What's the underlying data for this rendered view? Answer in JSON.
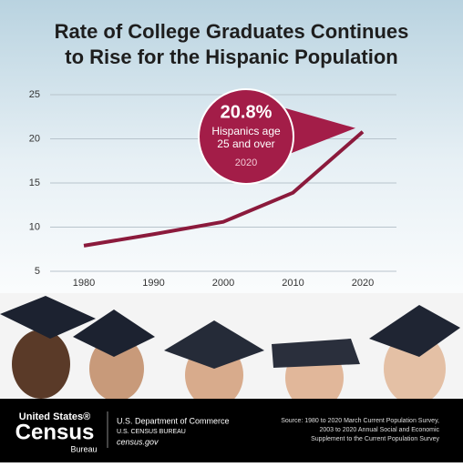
{
  "chart_data": {
    "type": "line",
    "title": [
      "Rate of College Graduates Continues",
      "to Rise for the Hispanic Population"
    ],
    "categories": [
      "1980",
      "1990",
      "2000",
      "2010",
      "2020"
    ],
    "values": [
      7.9,
      9.2,
      10.6,
      13.9,
      20.8
    ],
    "value_labels": [
      null,
      null,
      null,
      null,
      "20.8%"
    ],
    "color": "#8b1a3c",
    "ylim": [
      5,
      25
    ],
    "yticks": [
      5,
      10,
      15,
      20,
      25
    ],
    "grid": true,
    "annotation": [
      "Hispanics age",
      "25 and over"
    ]
  },
  "footer": {
    "logo": [
      "United States®",
      "Census",
      "Bureau"
    ],
    "department": "U.S. Department of Commerce",
    "bureau": "U.S. CENSUS BUREAU",
    "url": "census.gov",
    "source": [
      "Source: 1980 to 2020 March Current Population Survey,",
      "2003 to 2020 Annual Social and Economic",
      "Supplement to the Current Population Survey"
    ]
  }
}
